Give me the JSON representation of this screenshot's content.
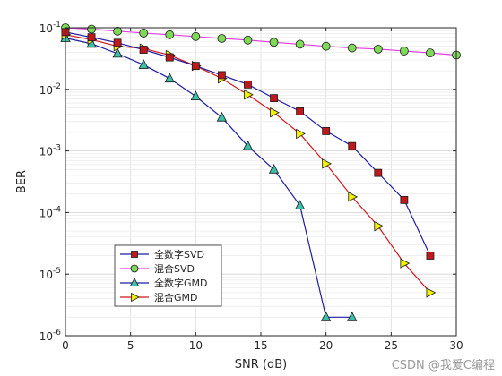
{
  "watermark": "CSDN @我爱C编程",
  "chart_data": {
    "type": "line",
    "xlabel": "SNR (dB)",
    "ylabel": "BER",
    "xlim": [
      0,
      30
    ],
    "ylim": [
      1e-06,
      0.1
    ],
    "yscale": "log",
    "grid": true,
    "legend_position": "bottom-left",
    "x_ticks": [
      0,
      5,
      10,
      15,
      20,
      25,
      30
    ],
    "y_ticks": [
      {
        "value": 1e-06,
        "base": "10",
        "exp": "-6"
      },
      {
        "value": 1e-05,
        "base": "10",
        "exp": "-5"
      },
      {
        "value": 0.0001,
        "base": "10",
        "exp": "-4"
      },
      {
        "value": 0.001,
        "base": "10",
        "exp": "-3"
      },
      {
        "value": 0.01,
        "base": "10",
        "exp": "-2"
      },
      {
        "value": 0.1,
        "base": "10",
        "exp": "-1"
      }
    ],
    "series": [
      {
        "name": "全数字SVD",
        "color": "#1f1fa0",
        "marker": "square",
        "marker_fill": "#c0181c",
        "x": [
          0,
          2,
          4,
          6,
          8,
          10,
          12,
          14,
          16,
          18,
          20,
          22,
          24,
          26,
          28
        ],
        "y": [
          0.085,
          0.07,
          0.057,
          0.044,
          0.033,
          0.024,
          0.017,
          0.012,
          0.0072,
          0.0044,
          0.0021,
          0.0012,
          0.00044,
          0.00016,
          2e-05
        ]
      },
      {
        "name": "混合SVD",
        "color": "#e040e0",
        "marker": "circle",
        "marker_fill": "#7ed957",
        "x": [
          0,
          2,
          4,
          6,
          8,
          10,
          12,
          14,
          16,
          18,
          20,
          22,
          24,
          26,
          28,
          30
        ],
        "y": [
          0.1,
          0.095,
          0.088,
          0.082,
          0.077,
          0.072,
          0.067,
          0.063,
          0.058,
          0.054,
          0.05,
          0.047,
          0.045,
          0.042,
          0.039,
          0.036
        ]
      },
      {
        "name": "全数字GMD",
        "color": "#1f1fa0",
        "marker": "triangle-up",
        "marker_fill": "#3cc0a8",
        "x": [
          0,
          2,
          4,
          6,
          8,
          10,
          12,
          14,
          16,
          18,
          20,
          22
        ],
        "y": [
          0.068,
          0.055,
          0.038,
          0.025,
          0.015,
          0.0077,
          0.0035,
          0.0012,
          0.0005,
          0.00013,
          2e-06,
          2e-06
        ]
      },
      {
        "name": "混合GMD",
        "color": "#d0181c",
        "marker": "triangle-right",
        "marker_fill": "#f2f200",
        "x": [
          0,
          2,
          4,
          6,
          8,
          10,
          12,
          14,
          16,
          18,
          20,
          22,
          24,
          26,
          28
        ],
        "y": [
          0.077,
          0.064,
          0.05,
          0.046,
          0.036,
          0.024,
          0.015,
          0.0082,
          0.0042,
          0.0019,
          0.00062,
          0.00018,
          6e-05,
          1.5e-05,
          5e-06
        ]
      }
    ]
  }
}
